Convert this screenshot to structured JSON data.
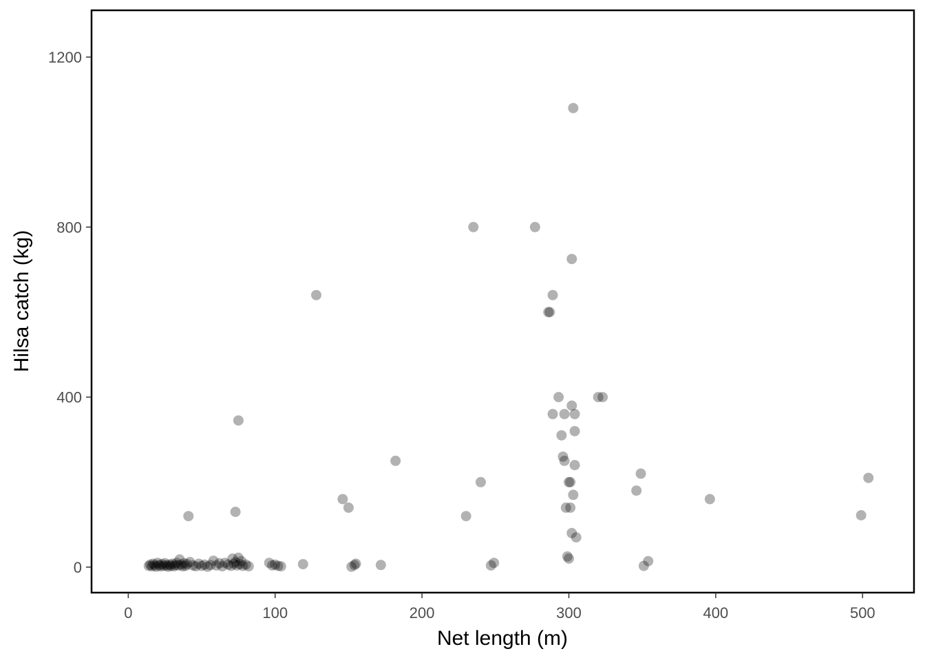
{
  "chart_data": {
    "type": "scatter",
    "title": "",
    "xlabel": "Net length (m)",
    "ylabel": "Hilsa catch (kg)",
    "xlim": [
      -25,
      535
    ],
    "ylim": [
      -60,
      1310
    ],
    "x_ticks": [
      0,
      100,
      200,
      300,
      400,
      500
    ],
    "y_ticks": [
      0,
      400,
      800,
      1200
    ],
    "x_tick_labels": [
      "0",
      "100",
      "200",
      "300",
      "400",
      "500"
    ],
    "y_tick_labels": [
      "0",
      "400",
      "800",
      "1200"
    ],
    "grid": false,
    "legend": "none",
    "point_color": "#000000",
    "point_opacity": 0.3,
    "series": [
      {
        "points": [
          [
            14,
            3
          ],
          [
            15,
            6
          ],
          [
            16,
            2
          ],
          [
            17,
            8
          ],
          [
            18,
            4
          ],
          [
            19,
            1
          ],
          [
            20,
            10
          ],
          [
            21,
            5
          ],
          [
            22,
            2
          ],
          [
            23,
            7
          ],
          [
            24,
            3
          ],
          [
            25,
            9
          ],
          [
            26,
            4
          ],
          [
            27,
            1
          ],
          [
            28,
            6
          ],
          [
            29,
            3
          ],
          [
            30,
            8
          ],
          [
            31,
            2
          ],
          [
            32,
            5
          ],
          [
            33,
            10
          ],
          [
            34,
            4
          ],
          [
            35,
            18
          ],
          [
            36,
            6
          ],
          [
            37,
            2
          ],
          [
            38,
            9
          ],
          [
            39,
            3
          ],
          [
            40,
            7
          ],
          [
            42,
            12
          ],
          [
            44,
            4
          ],
          [
            46,
            2
          ],
          [
            48,
            8
          ],
          [
            50,
            3
          ],
          [
            52,
            6
          ],
          [
            54,
            1
          ],
          [
            56,
            5
          ],
          [
            58,
            15
          ],
          [
            60,
            4
          ],
          [
            62,
            9
          ],
          [
            64,
            2
          ],
          [
            66,
            10
          ],
          [
            68,
            6
          ],
          [
            70,
            3
          ],
          [
            71,
            20
          ],
          [
            72,
            8
          ],
          [
            73,
            12
          ],
          [
            74,
            4
          ],
          [
            75,
            22
          ],
          [
            76,
            7
          ],
          [
            77,
            14
          ],
          [
            78,
            3
          ],
          [
            80,
            6
          ],
          [
            82,
            2
          ],
          [
            96,
            10
          ],
          [
            98,
            4
          ],
          [
            100,
            6
          ],
          [
            102,
            3
          ],
          [
            104,
            2
          ],
          [
            119,
            7
          ],
          [
            152,
            1
          ],
          [
            154,
            5
          ],
          [
            155,
            8
          ],
          [
            172,
            5
          ],
          [
            247,
            4
          ],
          [
            249,
            10
          ],
          [
            299,
            25
          ],
          [
            300,
            20
          ],
          [
            351,
            3
          ],
          [
            354,
            14
          ],
          [
            41,
            120
          ],
          [
            73,
            130
          ],
          [
            75,
            345
          ],
          [
            128,
            640
          ],
          [
            146,
            160
          ],
          [
            150,
            140
          ],
          [
            182,
            250
          ],
          [
            230,
            120
          ],
          [
            235,
            800
          ],
          [
            240,
            200
          ],
          [
            277,
            800
          ],
          [
            286,
            600
          ],
          [
            287,
            600
          ],
          [
            289,
            640
          ],
          [
            289,
            360
          ],
          [
            293,
            400
          ],
          [
            295,
            310
          ],
          [
            296,
            260
          ],
          [
            297,
            250
          ],
          [
            297,
            360
          ],
          [
            298,
            140
          ],
          [
            300,
            200
          ],
          [
            301,
            200
          ],
          [
            301,
            140
          ],
          [
            302,
            380
          ],
          [
            302,
            725
          ],
          [
            302,
            80
          ],
          [
            303,
            170
          ],
          [
            303,
            1080
          ],
          [
            304,
            360
          ],
          [
            304,
            320
          ],
          [
            304,
            240
          ],
          [
            305,
            70
          ],
          [
            320,
            400
          ],
          [
            323,
            400
          ],
          [
            346,
            180
          ],
          [
            349,
            220
          ],
          [
            396,
            160
          ],
          [
            499,
            122
          ],
          [
            504,
            210
          ]
        ]
      }
    ]
  }
}
